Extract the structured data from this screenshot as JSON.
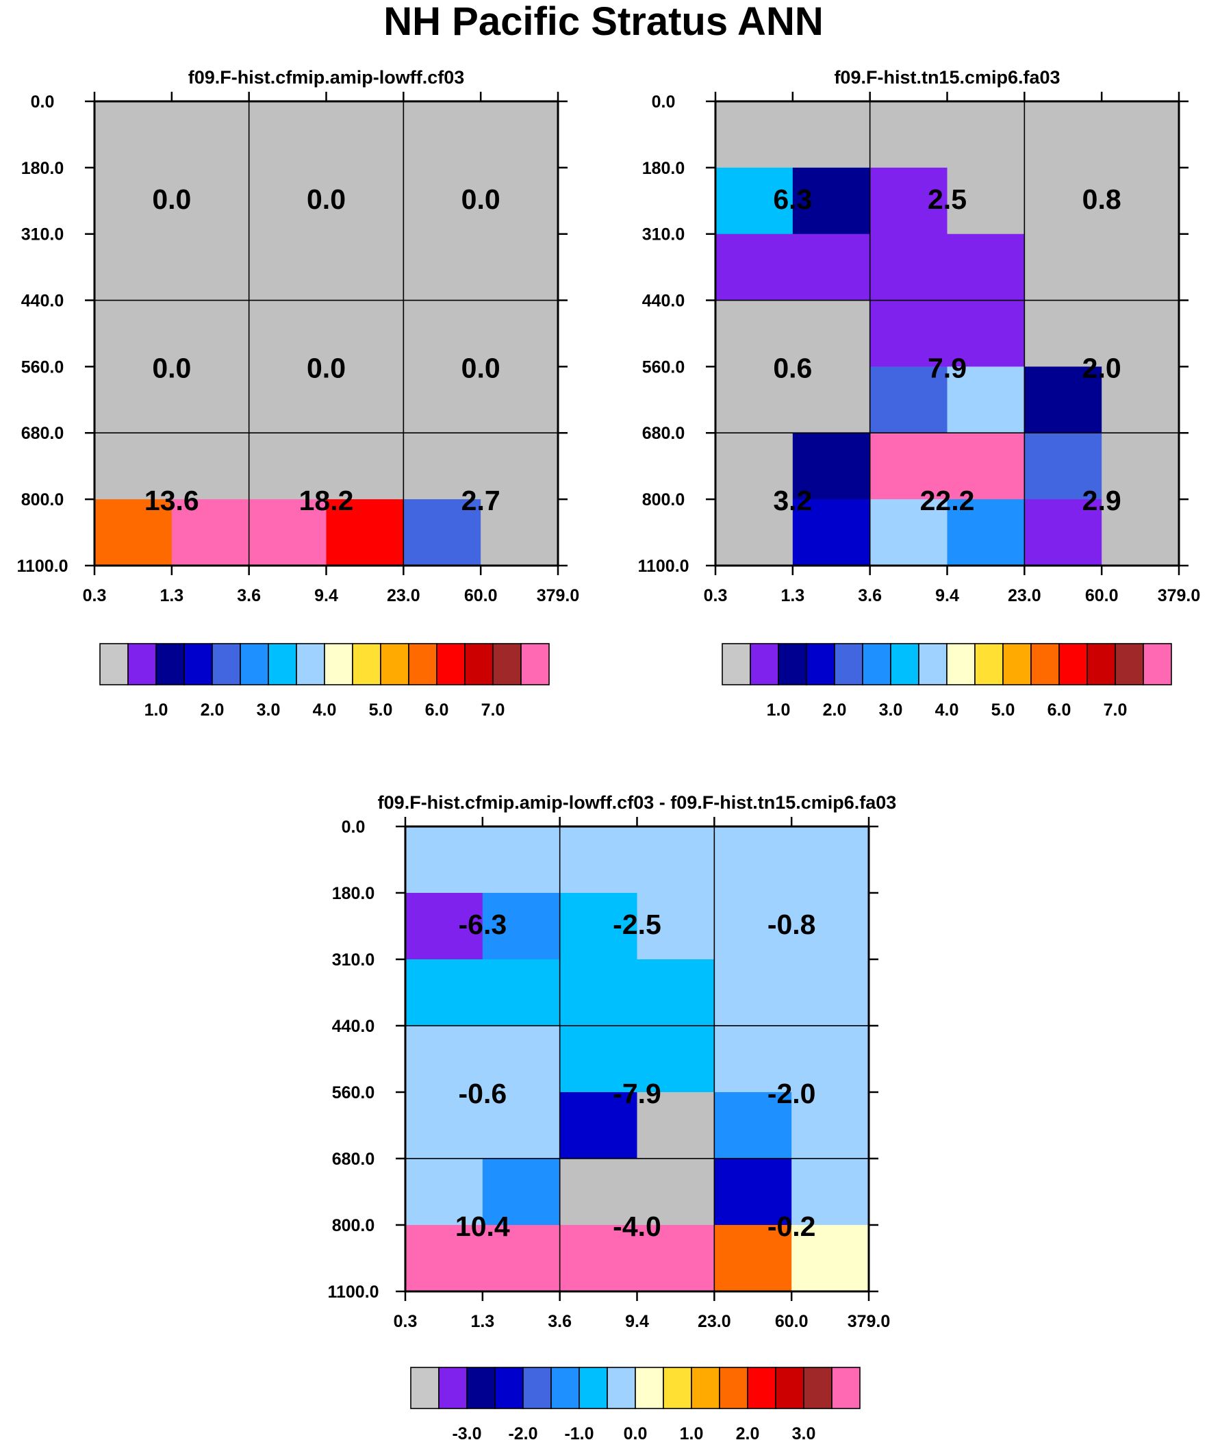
{
  "title": "NH Pacific Stratus ANN",
  "chart_data": [
    {
      "type": "heatmap",
      "title": "f09.F-hist.cfmip.amip-lowff.cf03",
      "x_ticks": [
        "0.3",
        "1.3",
        "3.6",
        "9.4",
        "23.0",
        "60.0",
        "379.0"
      ],
      "y_ticks": [
        "0.0",
        "180.0",
        "310.0",
        "440.0",
        "560.0",
        "680.0",
        "800.0",
        "1100.0"
      ],
      "cells": [
        [
          "gray",
          "gray",
          "gray",
          "gray",
          "gray",
          "gray"
        ],
        [
          "gray",
          "gray",
          "gray",
          "gray",
          "gray",
          "gray"
        ],
        [
          "gray",
          "gray",
          "gray",
          "gray",
          "gray",
          "gray"
        ],
        [
          "gray",
          "gray",
          "gray",
          "gray",
          "gray",
          "gray"
        ],
        [
          "gray",
          "gray",
          "gray",
          "gray",
          "gray",
          "gray"
        ],
        [
          "gray",
          "gray",
          "gray",
          "gray",
          "gray",
          "gray"
        ],
        [
          "orange",
          "pink",
          "pink",
          "red",
          "royalblue",
          "gray"
        ]
      ],
      "box_values": [
        [
          "0.0",
          "0.0",
          "0.0"
        ],
        [
          "0.0",
          "0.0",
          "0.0"
        ],
        [
          "13.6",
          "18.2",
          "2.7"
        ]
      ],
      "colorbar_labels": [
        "1.0",
        "2.0",
        "3.0",
        "4.0",
        "5.0",
        "6.0",
        "7.0"
      ]
    },
    {
      "type": "heatmap",
      "title": "f09.F-hist.tn15.cmip6.fa03",
      "x_ticks": [
        "0.3",
        "1.3",
        "3.6",
        "9.4",
        "23.0",
        "60.0",
        "379.0"
      ],
      "y_ticks": [
        "0.0",
        "180.0",
        "310.0",
        "440.0",
        "560.0",
        "680.0",
        "800.0",
        "1100.0"
      ],
      "cells": [
        [
          "gray",
          "gray",
          "gray",
          "gray",
          "gray",
          "gray"
        ],
        [
          "deepskyblue",
          "navy",
          "purple",
          "gray",
          "gray",
          "gray"
        ],
        [
          "purple",
          "purple",
          "purple",
          "purple",
          "gray",
          "gray"
        ],
        [
          "gray",
          "gray",
          "purple",
          "purple",
          "gray",
          "gray"
        ],
        [
          "gray",
          "gray",
          "royalblue",
          "lightblue",
          "navy",
          "gray"
        ],
        [
          "gray",
          "navy",
          "pink",
          "pink",
          "royalblue",
          "gray"
        ],
        [
          "gray",
          "mediumblue",
          "lightblue",
          "dodgerblue",
          "purple",
          "gray"
        ]
      ],
      "box_values": [
        [
          "6.3",
          "2.5",
          "0.8"
        ],
        [
          "0.6",
          "7.9",
          "2.0"
        ],
        [
          "3.2",
          "22.2",
          "2.9"
        ]
      ],
      "colorbar_labels": [
        "1.0",
        "2.0",
        "3.0",
        "4.0",
        "5.0",
        "6.0",
        "7.0"
      ]
    },
    {
      "type": "heatmap",
      "title": "f09.F-hist.cfmip.amip-lowff.cf03 - f09.F-hist.tn15.cmip6.fa03",
      "x_ticks": [
        "0.3",
        "1.3",
        "3.6",
        "9.4",
        "23.0",
        "60.0",
        "379.0"
      ],
      "y_ticks": [
        "0.0",
        "180.0",
        "310.0",
        "440.0",
        "560.0",
        "680.0",
        "800.0",
        "1100.0"
      ],
      "cells": [
        [
          "lightblue",
          "lightblue",
          "lightblue",
          "lightblue",
          "lightblue",
          "lightblue"
        ],
        [
          "purple",
          "dodgerblue",
          "deepskyblue",
          "lightblue",
          "lightblue",
          "lightblue"
        ],
        [
          "deepskyblue",
          "deepskyblue",
          "deepskyblue",
          "deepskyblue",
          "lightblue",
          "lightblue"
        ],
        [
          "lightblue",
          "lightblue",
          "deepskyblue",
          "deepskyblue",
          "lightblue",
          "lightblue"
        ],
        [
          "lightblue",
          "lightblue",
          "mediumblue",
          "gray",
          "dodgerblue",
          "lightblue"
        ],
        [
          "lightblue",
          "dodgerblue",
          "gray",
          "gray",
          "mediumblue",
          "lightblue"
        ],
        [
          "pink",
          "pink",
          "pink",
          "pink",
          "orange",
          "lightyellow"
        ]
      ],
      "box_values": [
        [
          "-6.3",
          "-2.5",
          "-0.8"
        ],
        [
          "-0.6",
          "-7.9",
          "-2.0"
        ],
        [
          "10.4",
          "-4.0",
          "-0.2"
        ]
      ],
      "colorbar_labels": [
        "-3.0",
        "-2.0",
        "-1.0",
        "0.0",
        "1.0",
        "2.0",
        "3.0"
      ]
    }
  ],
  "palette": {
    "gray": "#c0c0c0",
    "purple": "#8022ee",
    "navy": "#000090",
    "mediumblue": "#0000cc",
    "royalblue": "#4166e0",
    "dodgerblue": "#1e90ff",
    "deepskyblue": "#00bfff",
    "lightblue": "#a0d2ff",
    "lightyellow": "#ffffcc",
    "gold": "#ffe033",
    "amber": "#ffaa00",
    "orange": "#ff6a00",
    "red": "#ff0000",
    "darkred": "#cc0000",
    "brown": "#a02828",
    "pink": "#ff69b4"
  },
  "colorbar_colors": [
    "#c8c8c8",
    "#8022ee",
    "#000090",
    "#0000cc",
    "#4166e0",
    "#1e90ff",
    "#00bfff",
    "#a0d2ff",
    "#ffffcc",
    "#ffe033",
    "#ffaa00",
    "#ff6a00",
    "#ff0000",
    "#cc0000",
    "#a02828",
    "#ff69b4"
  ]
}
